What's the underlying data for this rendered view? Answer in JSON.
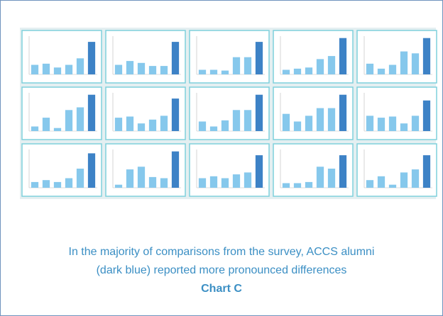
{
  "figure": {
    "bar_color": "#86c8ec",
    "accent_color": "#3d82c6",
    "ylim": [
      0,
      100
    ],
    "panels": [
      {
        "values": [
          25,
          28,
          18,
          25,
          42,
          85
        ]
      },
      {
        "values": [
          25,
          35,
          30,
          22,
          22,
          85
        ]
      },
      {
        "values": [
          12,
          12,
          10,
          45,
          45,
          85
        ]
      },
      {
        "values": [
          12,
          15,
          18,
          40,
          48,
          95
        ]
      },
      {
        "values": [
          28,
          15,
          25,
          60,
          55,
          95
        ]
      },
      {
        "values": [
          12,
          35,
          8,
          55,
          62,
          95
        ]
      },
      {
        "values": [
          35,
          38,
          20,
          30,
          40,
          85
        ]
      },
      {
        "values": [
          25,
          12,
          28,
          55,
          55,
          95
        ]
      },
      {
        "values": [
          45,
          25,
          40,
          60,
          60,
          95
        ]
      },
      {
        "values": [
          40,
          35,
          38,
          20,
          40,
          80
        ]
      },
      {
        "values": [
          15,
          20,
          15,
          25,
          50,
          90
        ]
      },
      {
        "values": [
          8,
          48,
          55,
          28,
          25,
          95
        ]
      },
      {
        "values": [
          25,
          30,
          25,
          35,
          40,
          85
        ]
      },
      {
        "values": [
          12,
          12,
          15,
          55,
          50,
          85
        ]
      },
      {
        "values": [
          20,
          30,
          8,
          40,
          48,
          85
        ]
      }
    ]
  },
  "caption": {
    "lines": [
      "In the majority of comparisons from the survey, ACCS alumni",
      "(dark blue) reported more pronounced differences"
    ],
    "label": "Chart C"
  }
}
